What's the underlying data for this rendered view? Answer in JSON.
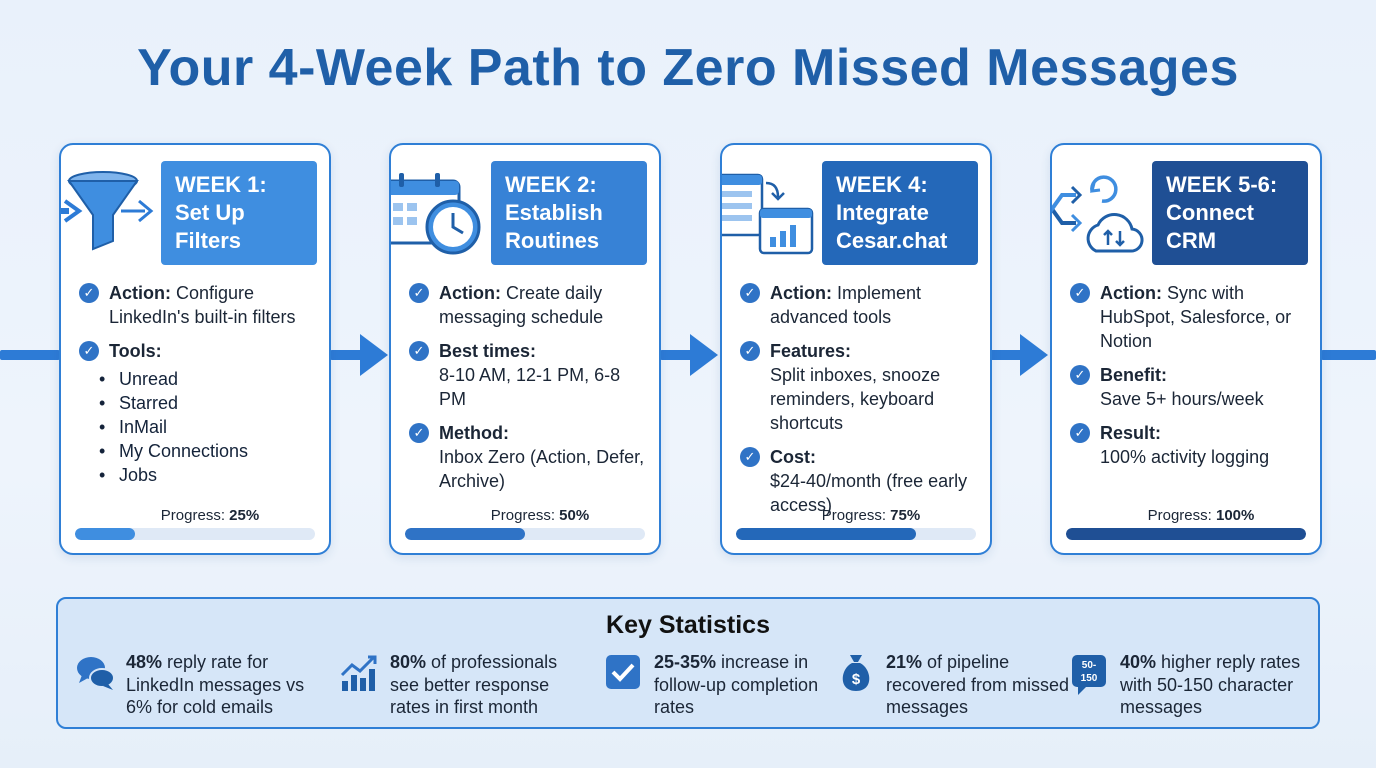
{
  "title": "Your 4-Week Path to Zero Missed Messages",
  "colors": {
    "accent": "#2d7bd6",
    "dark_blue": "#1f4f94",
    "mid_blue": "#2468b9",
    "light_blue": "#3f8ee0",
    "background": "#e9f1fb"
  },
  "cards": [
    {
      "week_lines": [
        "WEEK 1:",
        "Set Up",
        "Filters"
      ],
      "icon": "funnel-icon",
      "action_label": "Action:",
      "action_text": "Configure LinkedIn's built-in filters",
      "tools_label": "Tools:",
      "tools": [
        "Unread",
        "Starred",
        "InMail",
        "My Connections",
        "Jobs"
      ],
      "progress_label": "Progress:",
      "progress_value": "25%",
      "progress": 0.25
    },
    {
      "week_lines": [
        "WEEK 2:",
        "Establish",
        "Routines"
      ],
      "icon": "calendar-clock-icon",
      "action_label": "Action:",
      "action_text": "Create daily messaging schedule",
      "best_label": "Best times:",
      "best_text": "8-10 AM, 12-1 PM, 6-8 PM",
      "method_label": "Method:",
      "method_text": "Inbox Zero (Action, Defer, Archive)",
      "progress_label": "Progress:",
      "progress_value": "50%",
      "progress": 0.5
    },
    {
      "week_lines": [
        "WEEK 4:",
        "Integrate",
        "Cesar.chat"
      ],
      "icon": "dashboard-windows-icon",
      "action_label": "Action:",
      "action_text": "Implement advanced tools",
      "features_label": "Features:",
      "features_text": "Split inboxes, snooze reminders, keyboard shortcuts",
      "cost_label": "Cost:",
      "cost_text": "$24-40/month (free early access)",
      "progress_label": "Progress:",
      "progress_value": "75%",
      "progress": 0.75
    },
    {
      "week_lines": [
        "WEEK 5-6:",
        "Connect",
        "CRM"
      ],
      "icon": "sync-cloud-icon",
      "action_label": "Action:",
      "action_text": "Sync with HubSpot, Salesforce, or Notion",
      "benefit_label": "Benefit:",
      "benefit_text": "Save 5+ hours/week",
      "result_label": "Result:",
      "result_text": "100% activity logging",
      "progress_label": "Progress:",
      "progress_value": "100%",
      "progress": 1.0
    }
  ],
  "stats": {
    "title": "Key Statistics",
    "items": [
      {
        "icon": "chat-bubbles-icon",
        "bold": "48%",
        "text": " reply rate for LinkedIn messages vs 6% for cold emails"
      },
      {
        "icon": "growth-chart-icon",
        "bold": "80%",
        "text": " of professionals see better response rates in first month"
      },
      {
        "icon": "checkbox-icon",
        "bold": "25-35%",
        "text": " increase in follow-up completion rates"
      },
      {
        "icon": "money-bag-icon",
        "bold": "21%",
        "text": " of pipeline recovered from missed messages"
      },
      {
        "icon": "char-count-badge-icon",
        "badge_text": "50-150",
        "bold": "40%",
        "text": " higher reply rates with 50-150 character messages"
      }
    ]
  }
}
